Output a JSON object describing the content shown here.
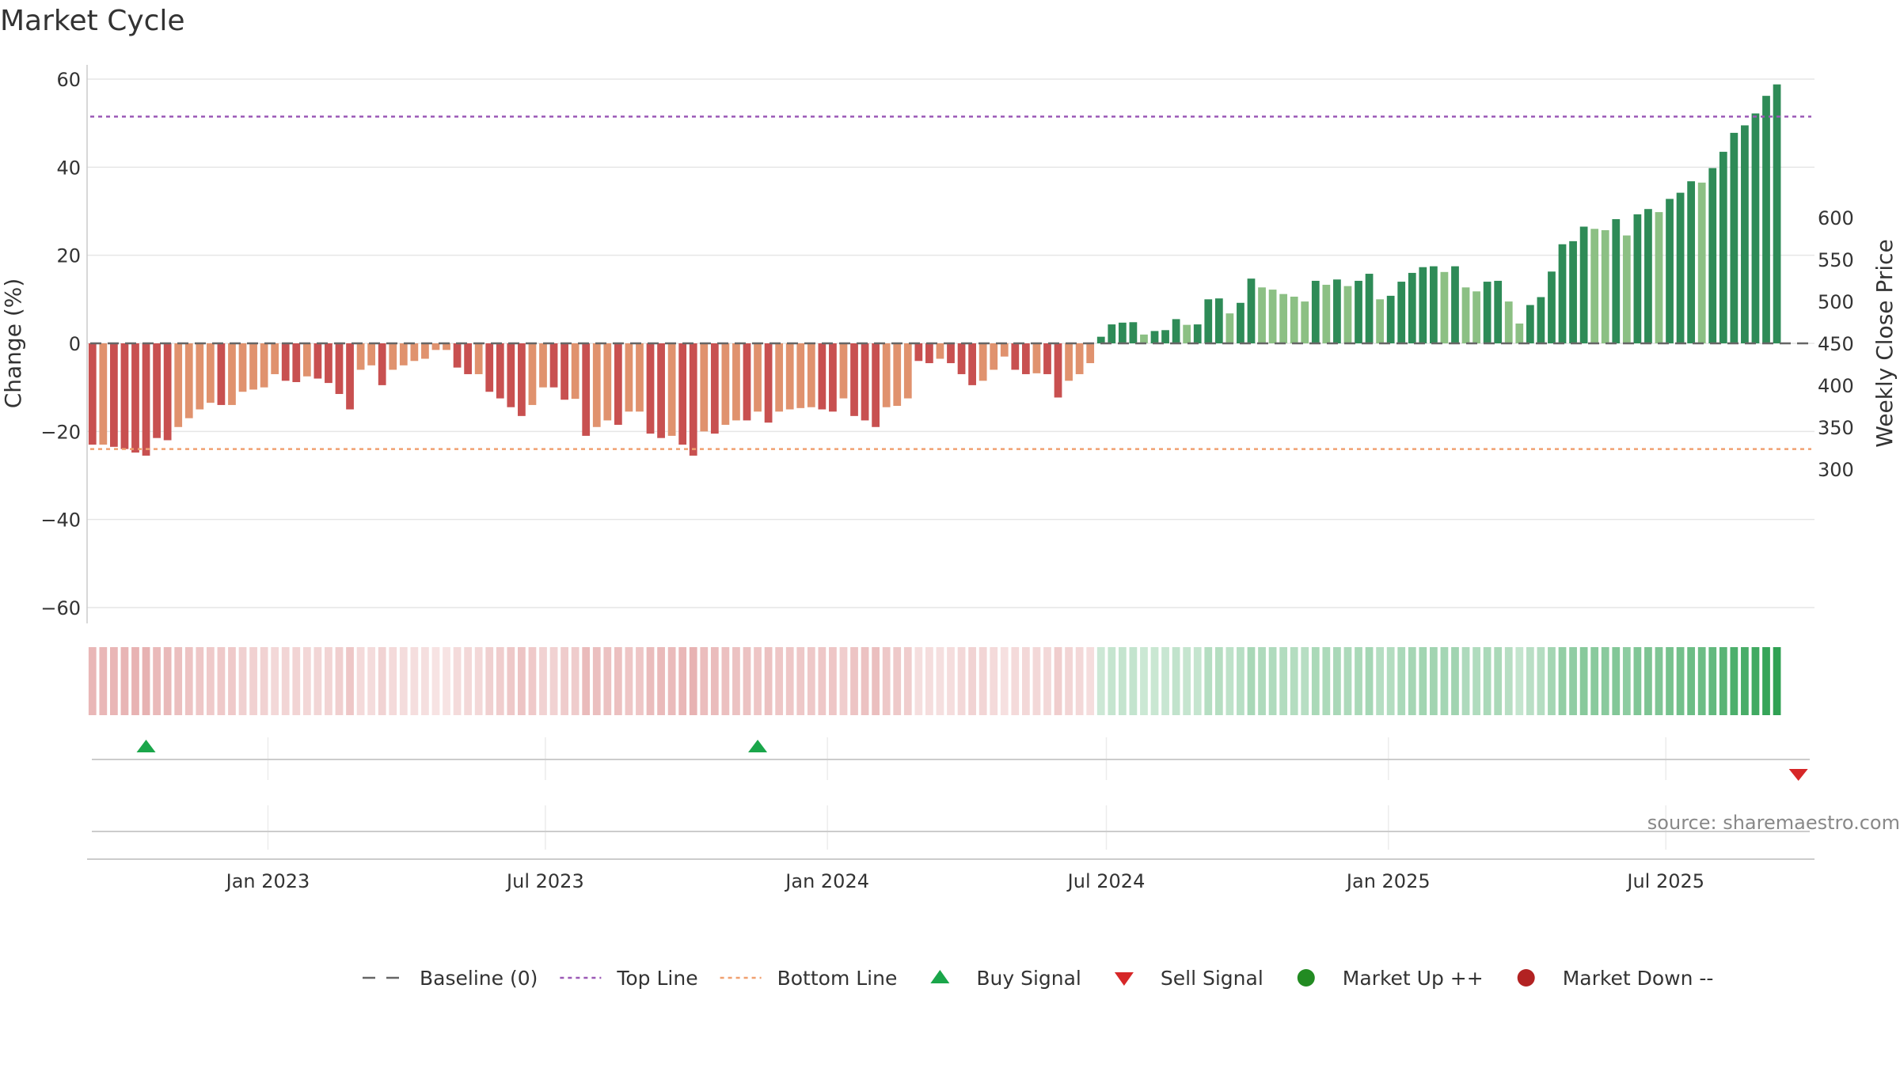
{
  "chart_data": {
    "type": "bar",
    "title": "Market Cycle",
    "ylabel_left": "Change (%)",
    "ylabel_right": "Weekly Close Price",
    "ylim_left": [
      -60,
      60
    ],
    "ylim_right": [
      300,
      600
    ],
    "yticks_left": [
      {
        "v": 60,
        "label": "60"
      },
      {
        "v": 40,
        "label": "40"
      },
      {
        "v": 20,
        "label": "20"
      },
      {
        "v": 0,
        "label": "0"
      },
      {
        "v": -20,
        "label": "−20"
      },
      {
        "v": -40,
        "label": "−40"
      },
      {
        "v": -60,
        "label": "−60"
      }
    ],
    "yticks_right": [
      {
        "v": 600,
        "label": "600"
      },
      {
        "v": 550,
        "label": "550"
      },
      {
        "v": 500,
        "label": "500"
      },
      {
        "v": 450,
        "label": "450"
      },
      {
        "v": 400,
        "label": "400"
      },
      {
        "v": 350,
        "label": "350"
      },
      {
        "v": 300,
        "label": "300"
      }
    ],
    "x_range": [
      "2022-09-05",
      "2025-10-06"
    ],
    "xticks": [
      {
        "date": "2023-01-01",
        "label": "Jan 2023"
      },
      {
        "date": "2023-07-01",
        "label": "Jul 2023"
      },
      {
        "date": "2024-01-01",
        "label": "Jan 2024"
      },
      {
        "date": "2024-07-01",
        "label": "Jul 2024"
      },
      {
        "date": "2025-01-01",
        "label": "Jan 2025"
      },
      {
        "date": "2025-07-01",
        "label": "Jul 2025"
      }
    ],
    "series_start": "2022-09-05",
    "interval_days": 7,
    "values": [
      -23.0,
      -23.0,
      -23.5,
      -24.0,
      -24.8,
      -25.5,
      -21.5,
      -22.0,
      -19.0,
      -17.0,
      -15.0,
      -13.5,
      -14.0,
      -14.0,
      -11.0,
      -10.5,
      -10.0,
      -7.0,
      -8.5,
      -8.8,
      -7.5,
      -8.0,
      -9.0,
      -11.5,
      -15.0,
      -6.0,
      -5.0,
      -9.5,
      -6.0,
      -5.0,
      -4.0,
      -3.5,
      -1.5,
      -1.5,
      -5.5,
      -7.0,
      -7.0,
      -11.0,
      -12.5,
      -14.5,
      -16.5,
      -14.0,
      -10.0,
      -10.0,
      -12.8,
      -12.6,
      -21.0,
      -19.0,
      -17.5,
      -18.5,
      -15.5,
      -15.5,
      -20.5,
      -21.5,
      -21.0,
      -23.0,
      -25.5,
      -20.0,
      -20.5,
      -18.5,
      -17.5,
      -17.5,
      -15.5,
      -18.0,
      -15.5,
      -15.0,
      -14.7,
      -14.5,
      -15.0,
      -15.5,
      -12.5,
      -16.5,
      -17.5,
      -19.0,
      -14.5,
      -14.2,
      -12.5,
      -4.0,
      -4.5,
      -3.5,
      -4.5,
      -7.0,
      -9.5,
      -8.5,
      -6.0,
      -3.0,
      -6.0,
      -7.0,
      -6.8,
      -7.0,
      -12.3,
      -8.5,
      -7.0,
      -4.5,
      1.5,
      4.3,
      4.7,
      4.8,
      2.0,
      2.8,
      3.0,
      5.5,
      4.2,
      4.3,
      10.0,
      10.2,
      6.8,
      9.2,
      14.7,
      12.7,
      12.2,
      11.2,
      10.6,
      9.5,
      14.2,
      13.3,
      14.5,
      13.0,
      14.2,
      15.8,
      10.0,
      10.8,
      14.0,
      16.0,
      17.3,
      17.5,
      16.2,
      17.5,
      12.7,
      11.8,
      14.0,
      14.2,
      9.5,
      4.5,
      8.7,
      10.5,
      16.3,
      22.5,
      23.2,
      26.5,
      26.0,
      25.7,
      28.2,
      24.5,
      29.3,
      30.5,
      29.8,
      32.8,
      34.2,
      36.8,
      36.5,
      39.8,
      43.5,
      47.8,
      49.5,
      52.2,
      56.2,
      58.8
    ],
    "value_colors": [
      "#c85050",
      "#e0926e",
      "#c85050",
      "#c85050",
      "#c85050",
      "#c85050",
      "#c85050",
      "#c85050",
      "#e0926e",
      "#e0926e",
      "#e0926e",
      "#e0926e",
      "#c85050",
      "#e0926e",
      "#e0926e",
      "#e0926e",
      "#e0926e",
      "#e0926e",
      "#c85050",
      "#c85050",
      "#e0926e",
      "#c85050",
      "#c85050",
      "#c85050",
      "#c85050",
      "#e0926e",
      "#e0926e",
      "#c85050",
      "#e0926e",
      "#e0926e",
      "#e0926e",
      "#e0926e",
      "#e0926e",
      "#e0926e",
      "#c85050",
      "#c85050",
      "#e0926e",
      "#c85050",
      "#c85050",
      "#c85050",
      "#c85050",
      "#e0926e",
      "#e0926e",
      "#c85050",
      "#c85050",
      "#e0926e",
      "#c85050",
      "#e0926e",
      "#e0926e",
      "#c85050",
      "#e0926e",
      "#e0926e",
      "#c85050",
      "#c85050",
      "#e0926e",
      "#c85050",
      "#c85050",
      "#e0926e",
      "#c85050",
      "#e0926e",
      "#e0926e",
      "#c85050",
      "#e0926e",
      "#c85050",
      "#e0926e",
      "#e0926e",
      "#e0926e",
      "#e0926e",
      "#c85050",
      "#c85050",
      "#e0926e",
      "#c85050",
      "#c85050",
      "#c85050",
      "#e0926e",
      "#e0926e",
      "#e0926e",
      "#c85050",
      "#c85050",
      "#e0926e",
      "#c85050",
      "#c85050",
      "#c85050",
      "#e0926e",
      "#e0926e",
      "#e0926e",
      "#c85050",
      "#c85050",
      "#e0926e",
      "#c85050",
      "#c85050",
      "#e0926e",
      "#e0926e",
      "#e0926e",
      "#2e8b57",
      "#2e8b57",
      "#2e8b57",
      "#2e8b57",
      "#8cc084",
      "#2e8b57",
      "#2e8b57",
      "#2e8b57",
      "#8cc084",
      "#2e8b57",
      "#2e8b57",
      "#2e8b57",
      "#8cc084",
      "#2e8b57",
      "#2e8b57",
      "#8cc084",
      "#8cc084",
      "#8cc084",
      "#8cc084",
      "#8cc084",
      "#2e8b57",
      "#8cc084",
      "#2e8b57",
      "#8cc084",
      "#2e8b57",
      "#2e8b57",
      "#8cc084",
      "#2e8b57",
      "#2e8b57",
      "#2e8b57",
      "#2e8b57",
      "#2e8b57",
      "#8cc084",
      "#2e8b57",
      "#8cc084",
      "#8cc084",
      "#2e8b57",
      "#2e8b57",
      "#8cc084",
      "#8cc084",
      "#2e8b57",
      "#2e8b57",
      "#2e8b57",
      "#2e8b57",
      "#2e8b57",
      "#2e8b57",
      "#8cc084",
      "#8cc084",
      "#2e8b57",
      "#8cc084",
      "#2e8b57",
      "#2e8b57",
      "#8cc084",
      "#2e8b57",
      "#2e8b57",
      "#2e8b57",
      "#8cc084",
      "#2e8b57",
      "#2e8b57",
      "#2e8b57",
      "#2e8b57",
      "#2e8b57",
      "#2e8b57",
      "#2e8b57"
    ],
    "top_line": 51.5,
    "bottom_line": -24.0,
    "baseline": 0,
    "colors": {
      "bar_down_strong": "#c85050",
      "bar_down_weak": "#e0926e",
      "bar_up_strong": "#2e8b57",
      "bar_up_weak": "#8cc084",
      "top_line": "#9b59b6",
      "bottom_line": "#f0a070",
      "baseline": "#666666",
      "buy": "#1aa64a",
      "sell": "#d62728",
      "market_up": "#228b22",
      "market_down": "#b22222"
    },
    "buy_signals": [
      "2022-10-10",
      "2023-11-13"
    ],
    "sell_signals": [
      "2025-09-22"
    ],
    "legend": [
      {
        "key": "baseline",
        "label": "Baseline (0)",
        "marker": "dash",
        "color": "#666666"
      },
      {
        "key": "top",
        "label": "Top Line",
        "marker": "dot",
        "color": "#9b59b6"
      },
      {
        "key": "bottom",
        "label": "Bottom Line",
        "marker": "dot",
        "color": "#f0a070"
      },
      {
        "key": "buy",
        "label": "Buy Signal",
        "marker": "tri-up",
        "color": "#1aa64a"
      },
      {
        "key": "sell",
        "label": "Sell Signal",
        "marker": "tri-down",
        "color": "#d62728"
      },
      {
        "key": "up",
        "label": "Market Up ++",
        "marker": "circle",
        "color": "#228b22"
      },
      {
        "key": "down",
        "label": "Market Down --",
        "marker": "circle",
        "color": "#b22222"
      }
    ],
    "source": "source: sharemaestro.com"
  }
}
